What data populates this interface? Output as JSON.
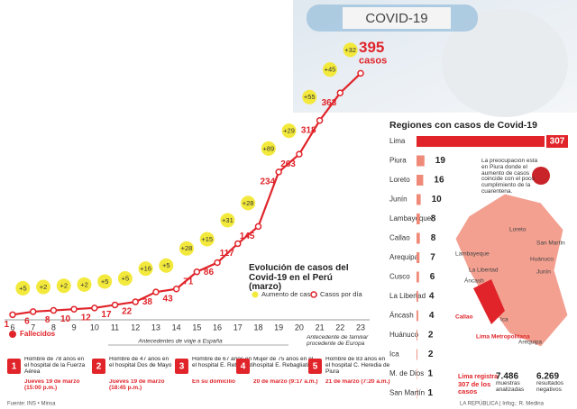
{
  "chart_data": [
    {
      "type": "line",
      "title": "Evolución de casos del Covid-19 en el Perú (marzo)",
      "categories": [
        "6",
        "7",
        "8",
        "9",
        "10",
        "11",
        "12",
        "13",
        "14",
        "15",
        "16",
        "17",
        "18",
        "19",
        "20",
        "21",
        "22",
        "23"
      ],
      "series": [
        {
          "name": "Casos por día",
          "color": "#e0242a",
          "values": [
            1,
            6,
            8,
            10,
            12,
            17,
            22,
            38,
            43,
            71,
            86,
            117,
            145,
            234,
            263,
            318,
            363,
            395
          ]
        },
        {
          "name": "Aumento de casos",
          "color": "#f3e93c",
          "values": [
            null,
            5,
            2,
            2,
            2,
            5,
            5,
            16,
            5,
            28,
            15,
            31,
            28,
            89,
            29,
            55,
            45,
            32
          ],
          "value_labels": [
            null,
            "+5",
            "+2",
            "+2",
            "+2",
            "+5",
            "+5",
            "+16",
            "+5",
            "+28",
            "+15",
            "+31",
            "+28",
            "+89",
            "+29",
            "+55",
            "+45",
            "+32"
          ]
        }
      ],
      "ylim": [
        0,
        400
      ],
      "annotation": "casos"
    },
    {
      "type": "hbar",
      "title": "Regiones con casos de Covid-19",
      "categories": [
        "Lima",
        "Piura",
        "Loreto",
        "Junín",
        "Lambayeque",
        "Callao",
        "Arequipa",
        "Cusco",
        "La Libertad",
        "Áncash",
        "Huánuco",
        "Ica",
        "M. de Dios",
        "San Martín"
      ],
      "values": [
        307,
        19,
        16,
        10,
        8,
        8,
        7,
        6,
        4,
        4,
        2,
        2,
        1,
        1
      ],
      "colors": [
        "#e0242a",
        "#f08a78",
        "#f08a78",
        "#f08a78",
        "#f08a78",
        "#f08a78",
        "#f08a78",
        "#f08a78",
        "#f08a78",
        "#f08a78",
        "#f08a78",
        "#f08a78",
        "#f08a78",
        "#f08a78"
      ],
      "xlim": [
        0,
        320
      ]
    }
  ],
  "header": {
    "label": "COVID-19"
  },
  "map": {
    "note": "La preocupación está en Piura donde el aumento de casos coincide con el poco cumplimiento de la cuarentena.",
    "labels": [
      "Loreto",
      "San Martín",
      "Lambayeque",
      "La Libertad",
      "Huánuco",
      "Junín",
      "Áncash",
      "Callao",
      "Lima Metropolitana",
      "Ica",
      "Arequipa"
    ]
  },
  "stats": [
    {
      "value": "Lima registra",
      "label": "307 de los casos"
    },
    {
      "value": "7.486",
      "label": "muestras analizadas"
    },
    {
      "value": "6.269",
      "label": "resultados negativos"
    }
  ],
  "deaths": {
    "title": "Fallecidos",
    "group_a": "Antecedentes de viaje a España",
    "group_b": "Antecedente de familiar procedente de Europa",
    "items": [
      {
        "number": "1",
        "text": "Hombre de 78 años en el hospital de la Fuerza Aérea",
        "date": "Jueves 19 de marzo (15:00 p.m.)"
      },
      {
        "number": "2",
        "text": "Hombre de 47 años en el hospital Dos de Mayo",
        "date": "Jueves 19 de marzo (18:45 p.m.)"
      },
      {
        "number": "3",
        "text": "Hombre de 67 años en el hospital E. Rebagliati",
        "date": "En su domicilio"
      },
      {
        "number": "4",
        "text": "Mujer de 75 años en el hospital E. Rebagliati",
        "date": "20 de marzo (9:17 a.m.)"
      },
      {
        "number": "5",
        "text": "Hombre de 83 años en el hospital C. Heredia de Piura",
        "date": "21 de marzo (7:20 a.m.)"
      }
    ]
  },
  "footer": {
    "source": "Fuente: INS • Minsa",
    "credit": "LA REPÚBLICA | Infog.: R. Medina"
  }
}
